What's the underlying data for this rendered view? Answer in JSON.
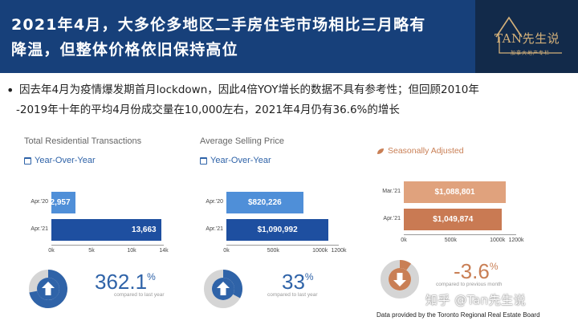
{
  "header": {
    "title_line1": "2021年4月，大多伦多地区二手房住宅市场相比三月略有",
    "title_line2": "降温，但整体价格依旧保持高位",
    "logo_text": "TAN先生说",
    "logo_sub": "加拿大地产专栏"
  },
  "bullet": {
    "line1": "因去年4月为疫情爆发期首月lockdown，因此4倍YOY增长的数据不具有参考性；但回顾2010年",
    "line2": "-2019年十年的平均4月份成交量在10,000左右，2021年4月仍有36.6%的增长"
  },
  "colors": {
    "header_bg": "#17407a",
    "blue_light": "#4f8fd8",
    "blue_dark": "#1e4fa0",
    "copper_light": "#e0a27d",
    "copper_dark": "#c97a53",
    "gauge_gray": "#d5d5d5"
  },
  "panels": {
    "transactions": {
      "title": "Total Residential Transactions",
      "subtitle": "Year-Over-Year",
      "bars": [
        {
          "label": "Apr.'20",
          "value": 2957,
          "display": "2,957"
        },
        {
          "label": "Apr.'21",
          "value": 13663,
          "display": "13,663"
        }
      ],
      "ticks": [
        "0k",
        "5k",
        "10k",
        "14k"
      ],
      "max": 14000,
      "change": "362.1",
      "change_unit": "%",
      "caption": "compared to last year",
      "gauge_fraction": 0.72,
      "direction": "up"
    },
    "price": {
      "title": "Average Selling Price",
      "subtitle": "Year-Over-Year",
      "bars": [
        {
          "label": "Apr.'20",
          "value": 820226,
          "display": "$820,226"
        },
        {
          "label": "Apr.'21",
          "value": 1090992,
          "display": "$1,090,992"
        }
      ],
      "ticks": [
        "0k",
        "500k",
        "1000k",
        "1200k"
      ],
      "max": 1200000,
      "change": "33",
      "change_unit": "%",
      "caption": "compared to last year",
      "gauge_fraction": 0.33,
      "direction": "up"
    },
    "seasonal": {
      "title": "Seasonally Adjusted",
      "bars": [
        {
          "label": "Mar.'21",
          "value": 1088801,
          "display": "$1,088,801"
        },
        {
          "label": "Apr.'21",
          "value": 1049874,
          "display": "$1,049,874"
        }
      ],
      "ticks": [
        "0k",
        "500k",
        "1000k",
        "1200k"
      ],
      "max": 1200000,
      "change": "-3.6",
      "change_unit": "%",
      "caption": "compared to previous month",
      "gauge_fraction": 0.1,
      "direction": "down"
    }
  },
  "watermark": "知乎 @Tan先生说",
  "source": "Data provided by the Toronto Regional Real Estate Board",
  "chart_data": [
    {
      "type": "bar",
      "title": "Total Residential Transactions",
      "categories": [
        "Apr.'20",
        "Apr.'21"
      ],
      "values": [
        2957,
        13663
      ],
      "xlim": [
        0,
        14000
      ]
    },
    {
      "type": "bar",
      "title": "Average Selling Price",
      "categories": [
        "Apr.'20",
        "Apr.'21"
      ],
      "values": [
        820226,
        1090992
      ],
      "xlim": [
        0,
        1200000
      ]
    },
    {
      "type": "bar",
      "title": "Seasonally Adjusted",
      "categories": [
        "Mar.'21",
        "Apr.'21"
      ],
      "values": [
        1088801,
        1049874
      ],
      "xlim": [
        0,
        1200000
      ]
    }
  ]
}
